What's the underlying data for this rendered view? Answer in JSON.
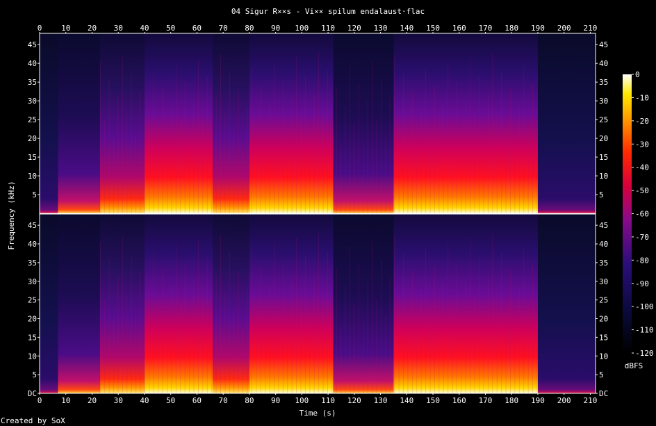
{
  "chart_data": {
    "type": "heatmap",
    "title": "04 Sigur R××s - Vi×× spilum endalaust·flac",
    "xlabel": "Time (s)",
    "ylabel": "Frequency (kHz)",
    "xlim": [
      0,
      212
    ],
    "ylim": [
      0,
      48
    ],
    "x_ticks": [
      "0",
      "10",
      "20",
      "30",
      "40",
      "50",
      "60",
      "70",
      "80",
      "90",
      "100",
      "110",
      "120",
      "130",
      "140",
      "150",
      "160",
      "170",
      "180",
      "190",
      "200",
      "210"
    ],
    "y_ticks": [
      "DC",
      "5",
      "10",
      "15",
      "20",
      "25",
      "30",
      "35",
      "40",
      "45"
    ],
    "channels": [
      "ch1",
      "ch2"
    ],
    "segments": [
      {
        "start": 0,
        "end": 7,
        "intensity": 0.15
      },
      {
        "start": 7,
        "end": 23,
        "intensity": 0.45
      },
      {
        "start": 23,
        "end": 40,
        "intensity": 0.6
      },
      {
        "start": 40,
        "end": 66,
        "intensity": 0.92
      },
      {
        "start": 66,
        "end": 80,
        "intensity": 0.55
      },
      {
        "start": 80,
        "end": 112,
        "intensity": 0.9
      },
      {
        "start": 112,
        "end": 135,
        "intensity": 0.5
      },
      {
        "start": 135,
        "end": 190,
        "intensity": 0.9
      },
      {
        "start": 190,
        "end": 212,
        "intensity": 0.1
      }
    ],
    "colorbar": {
      "label": "dBFS",
      "ticks": [
        "0",
        "-10",
        "-20",
        "-30",
        "-40",
        "-50",
        "-60",
        "-70",
        "-80",
        "-90",
        "-100",
        "-110",
        "-120"
      ],
      "range": [
        -120,
        0
      ]
    }
  },
  "footer": "Created by SoX"
}
